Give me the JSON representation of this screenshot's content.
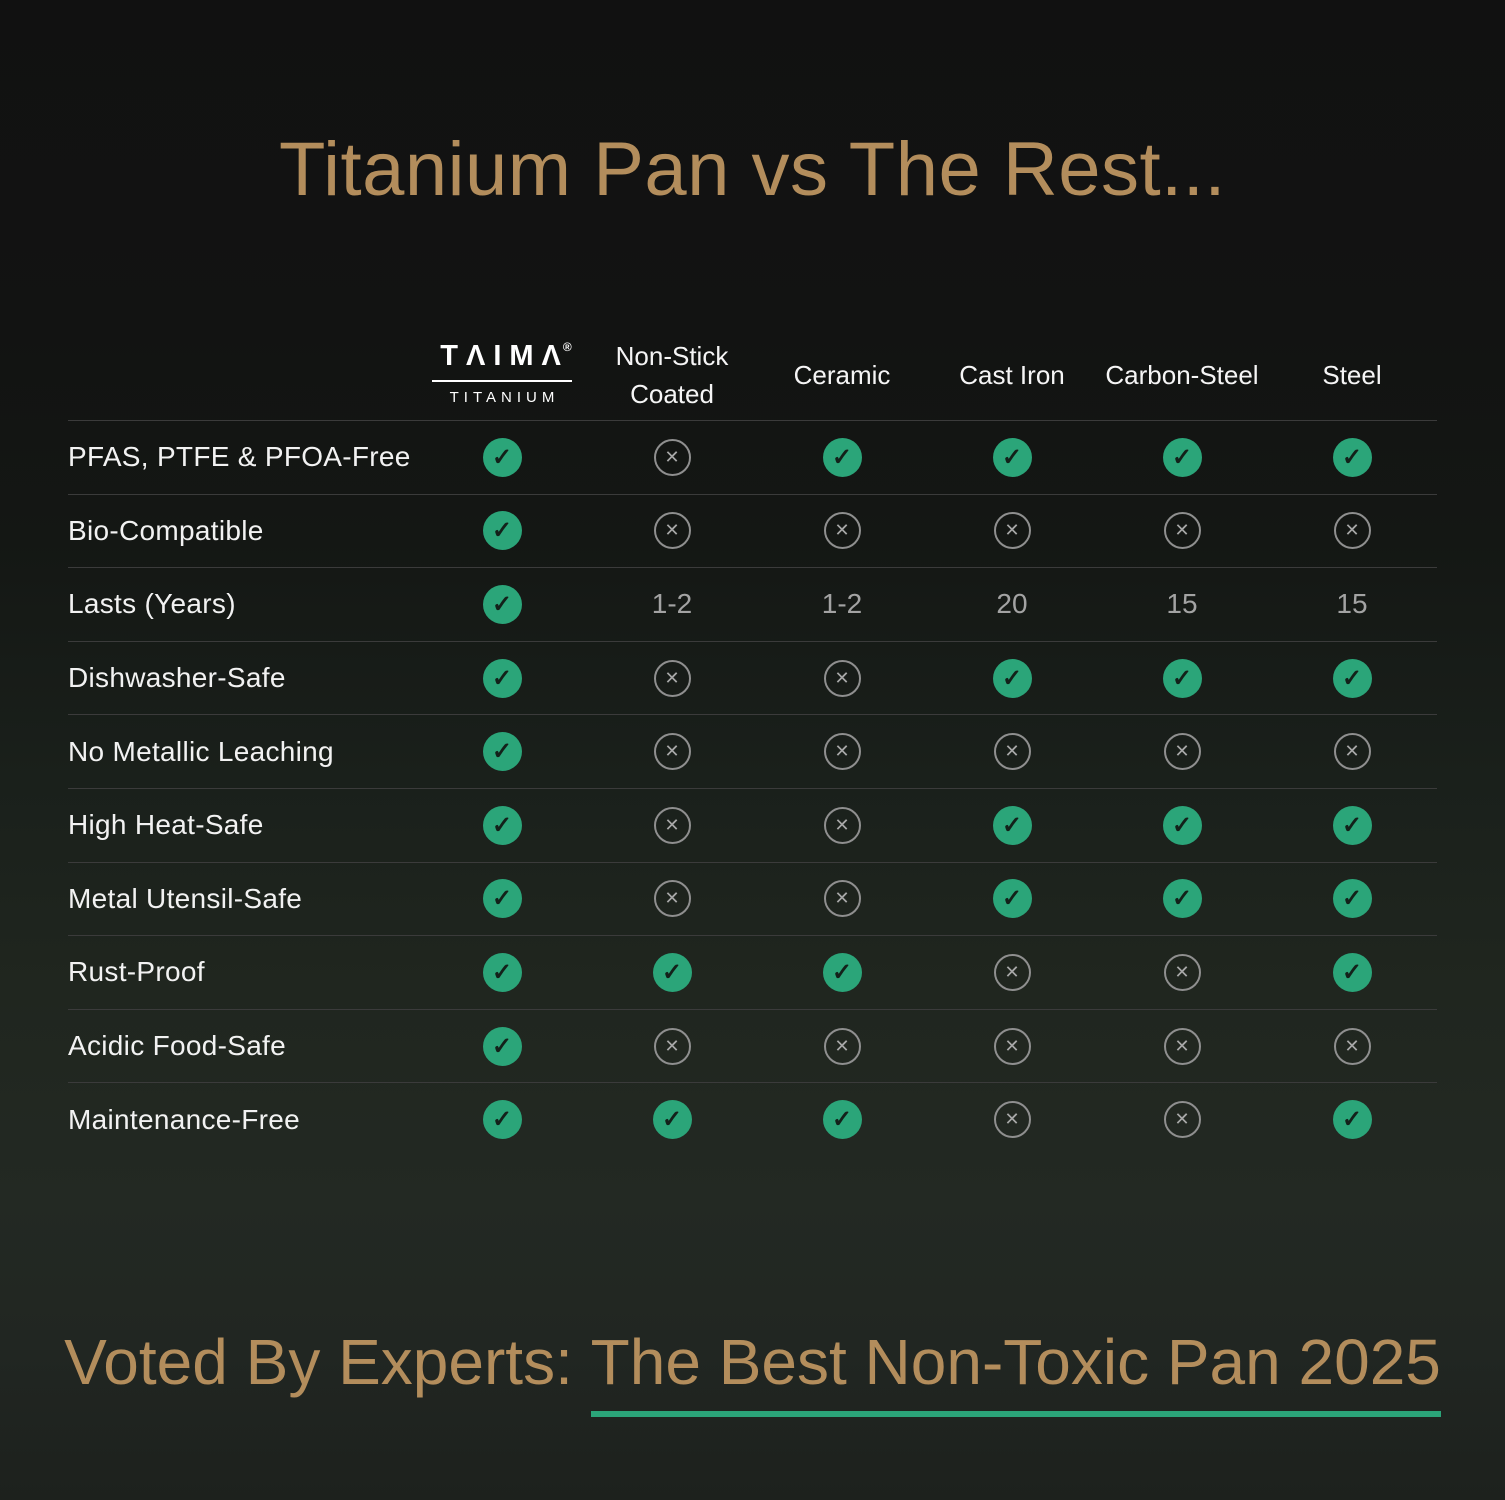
{
  "page": {
    "title": "Titanium Pan vs The Rest..."
  },
  "brand": {
    "wordmark": "TΛIMΛ",
    "registered": "®",
    "subtitle": "TITANIUM"
  },
  "table": {
    "columns": [
      "Non-Stick Coated",
      "Ceramic",
      "Cast Iron",
      "Carbon-Steel",
      "Steel"
    ],
    "rows": [
      {
        "label": "PFAS, PTFE & PFOA-Free",
        "cells": [
          "check",
          "cross",
          "check",
          "check",
          "check",
          "check"
        ]
      },
      {
        "label": "Bio-Compatible",
        "cells": [
          "check",
          "cross",
          "cross",
          "cross",
          "cross",
          "cross"
        ]
      },
      {
        "label": "Lasts (Years)",
        "cells": [
          "check",
          "1-2",
          "1-2",
          "20",
          "15",
          "15"
        ]
      },
      {
        "label": "Dishwasher-Safe",
        "cells": [
          "check",
          "cross",
          "cross",
          "check",
          "check",
          "check"
        ]
      },
      {
        "label": "No Metallic Leaching",
        "cells": [
          "check",
          "cross",
          "cross",
          "cross",
          "cross",
          "cross"
        ]
      },
      {
        "label": "High Heat-Safe",
        "cells": [
          "check",
          "cross",
          "cross",
          "check",
          "check",
          "check"
        ]
      },
      {
        "label": "Metal Utensil-Safe",
        "cells": [
          "check",
          "cross",
          "cross",
          "check",
          "check",
          "check"
        ]
      },
      {
        "label": "Rust-Proof",
        "cells": [
          "check",
          "check",
          "check",
          "cross",
          "cross",
          "check"
        ]
      },
      {
        "label": "Acidic Food-Safe",
        "cells": [
          "check",
          "cross",
          "cross",
          "cross",
          "cross",
          "cross"
        ]
      },
      {
        "label": "Maintenance-Free",
        "cells": [
          "check",
          "check",
          "check",
          "cross",
          "cross",
          "check"
        ]
      }
    ]
  },
  "icons": {
    "check": "✓",
    "cross": "✕"
  },
  "footer": {
    "prefix": "Voted By Experts: ",
    "highlight": "The Best Non-Toxic Pan 2025"
  },
  "colors": {
    "accent_gold": "#b38d5c",
    "check_green": "#2ba579",
    "cross_gray": "#8f8f8f",
    "underline_green": "#2ba579",
    "row_line": "#3b3b3b",
    "background_top": "#111111",
    "background_bottom": "#232923"
  },
  "chart_data": {
    "type": "table",
    "title": "Titanium Pan vs The Rest...",
    "columns": [
      "TAIMA TITANIUM",
      "Non-Stick Coated",
      "Ceramic",
      "Cast Iron",
      "Carbon-Steel",
      "Steel"
    ],
    "row_labels": [
      "PFAS, PTFE & PFOA-Free",
      "Bio-Compatible",
      "Lasts (Years)",
      "Dishwasher-Safe",
      "No Metallic Leaching",
      "High Heat-Safe",
      "Metal Utensil-Safe",
      "Rust-Proof",
      "Acidic Food-Safe",
      "Maintenance-Free"
    ],
    "values": [
      [
        "yes",
        "no",
        "yes",
        "yes",
        "yes",
        "yes"
      ],
      [
        "yes",
        "no",
        "no",
        "no",
        "no",
        "no"
      ],
      [
        "yes",
        "1-2",
        "1-2",
        "20",
        "15",
        "15"
      ],
      [
        "yes",
        "no",
        "no",
        "yes",
        "yes",
        "yes"
      ],
      [
        "yes",
        "no",
        "no",
        "no",
        "no",
        "no"
      ],
      [
        "yes",
        "no",
        "no",
        "yes",
        "yes",
        "yes"
      ],
      [
        "yes",
        "no",
        "no",
        "yes",
        "yes",
        "yes"
      ],
      [
        "yes",
        "yes",
        "yes",
        "no",
        "no",
        "yes"
      ],
      [
        "yes",
        "no",
        "no",
        "no",
        "no",
        "no"
      ],
      [
        "yes",
        "yes",
        "yes",
        "no",
        "no",
        "yes"
      ]
    ],
    "caption": "Voted By Experts: The Best Non-Toxic Pan 2025"
  }
}
